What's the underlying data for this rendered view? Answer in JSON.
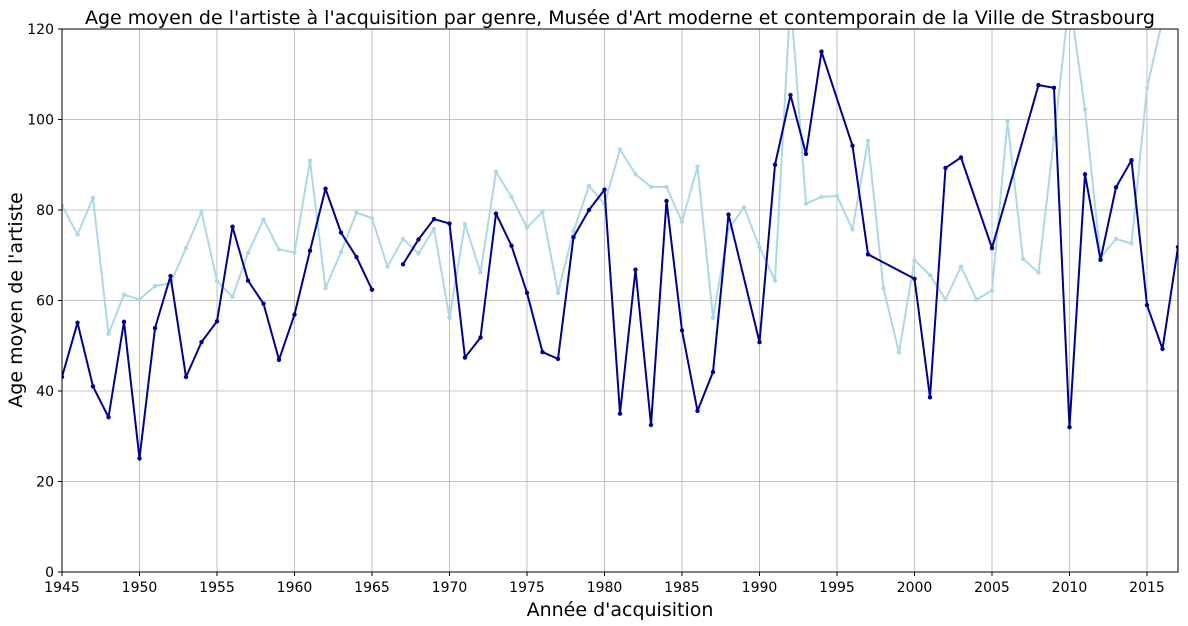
{
  "chart_data": {
    "type": "line",
    "title": "Age moyen de l'artiste à l'acquisition par genre, Musée d'Art moderne et contemporain de la Ville de Strasbourg",
    "xlabel": "Année d'acquisition",
    "ylabel": "Age moyen de l'artiste",
    "xlim": [
      1945,
      2017
    ],
    "ylim": [
      0,
      120
    ],
    "xticks": [
      1945,
      1950,
      1955,
      1960,
      1965,
      1970,
      1975,
      1980,
      1985,
      1990,
      1995,
      2000,
      2005,
      2010,
      2015
    ],
    "yticks": [
      0,
      20,
      40,
      60,
      80,
      100,
      120
    ],
    "grid": true,
    "series": [
      {
        "color": "#add8e6",
        "points": [
          [
            1945,
            81
          ],
          [
            1946,
            74.6
          ],
          [
            1947,
            82.7
          ],
          [
            1948,
            52.6
          ],
          [
            1949,
            61.3
          ],
          [
            1950,
            60.2
          ],
          [
            1951,
            63.2
          ],
          [
            1952,
            63.8
          ],
          [
            1953,
            71.6
          ],
          [
            1954,
            79.6
          ],
          [
            1955,
            64.3
          ],
          [
            1956,
            60.8
          ],
          [
            1957,
            70.5
          ],
          [
            1958,
            77.9
          ],
          [
            1959,
            71.3
          ],
          [
            1960,
            70.6
          ],
          [
            1961,
            90.9
          ],
          [
            1962,
            62.7
          ],
          [
            1963,
            70.7
          ],
          [
            1964,
            79.4
          ],
          [
            1965,
            78.2
          ],
          [
            1966,
            67.5
          ],
          [
            1967,
            73.6
          ],
          [
            1968,
            70.4
          ],
          [
            1969,
            75.8
          ],
          [
            1970,
            56.2
          ],
          [
            1971,
            76.9
          ],
          [
            1972,
            66.2
          ],
          [
            1973,
            88.4
          ],
          [
            1974,
            82.9
          ],
          [
            1975,
            76.1
          ],
          [
            1976,
            79.6
          ],
          [
            1977,
            61.7
          ],
          [
            1978,
            75.3
          ],
          [
            1979,
            85.3
          ],
          [
            1980,
            81.3
          ],
          [
            1981,
            93.4
          ],
          [
            1982,
            87.9
          ],
          [
            1983,
            85.1
          ],
          [
            1984,
            85.1
          ],
          [
            1985,
            77.4
          ],
          [
            1986,
            89.6
          ],
          [
            1987,
            56.2
          ],
          [
            1988,
            75.7
          ],
          [
            1989,
            80.6
          ],
          [
            1990,
            71.8
          ],
          [
            1991,
            64.4
          ],
          [
            1992,
            127
          ],
          [
            1993,
            81.4
          ],
          [
            1994,
            82.9
          ],
          [
            1995,
            83.1
          ],
          [
            1996,
            75.7
          ],
          [
            1997,
            95.3
          ],
          [
            1998,
            62.7
          ],
          [
            1999,
            48.5
          ],
          [
            2000,
            68.9
          ],
          [
            2001,
            65.6
          ],
          [
            2002,
            60.2
          ],
          [
            2003,
            67.5
          ],
          [
            2004,
            60.2
          ],
          [
            2005,
            62.2
          ],
          [
            2006,
            99.6
          ],
          [
            2007,
            69.2
          ],
          [
            2008,
            66.2
          ],
          [
            2009,
            95.8
          ],
          [
            2010,
            127
          ],
          [
            2011,
            102.2
          ],
          [
            2012,
            69.5
          ],
          [
            2013,
            73.6
          ],
          [
            2014,
            72.6
          ],
          [
            2015,
            107
          ],
          [
            2016,
            122
          ]
        ]
      },
      {
        "color": "#00008b",
        "points": [
          [
            1945,
            43.1
          ],
          [
            1946,
            55.1
          ],
          [
            1947,
            41
          ],
          [
            1948,
            34.2
          ],
          [
            1949,
            55.3
          ],
          [
            1950,
            25.1
          ],
          [
            1951,
            53.9
          ],
          [
            1952,
            65.4
          ],
          [
            1953,
            43.1
          ],
          [
            1954,
            50.8
          ],
          [
            1955,
            55.4
          ],
          [
            1956,
            76.3
          ],
          [
            1957,
            64.4
          ],
          [
            1958,
            59.3
          ],
          [
            1959,
            46.9
          ],
          [
            1960,
            56.9
          ],
          [
            1961,
            71
          ],
          [
            1962,
            84.7
          ],
          [
            1963,
            75
          ],
          [
            1964,
            69.6
          ],
          [
            1965,
            62.4
          ],
          null,
          [
            1967,
            68
          ],
          [
            1968,
            73.5
          ],
          [
            1969,
            78
          ],
          [
            1970,
            77
          ],
          [
            1971,
            47.4
          ],
          [
            1972,
            51.8
          ],
          [
            1973,
            79.2
          ],
          [
            1974,
            72.1
          ],
          [
            1975,
            61.7
          ],
          [
            1976,
            48.6
          ],
          [
            1977,
            47.1
          ],
          [
            1978,
            74
          ],
          [
            1979,
            80
          ],
          [
            1980,
            84.5
          ],
          [
            1981,
            35
          ],
          [
            1982,
            66.8
          ],
          [
            1983,
            32.5
          ],
          [
            1984,
            82
          ],
          [
            1985,
            53.4
          ],
          [
            1986,
            35.6
          ],
          [
            1987,
            44.2
          ],
          [
            1988,
            79
          ],
          [
            1990,
            50.8
          ],
          [
            1991,
            90
          ],
          [
            1992,
            105.4
          ],
          [
            1993,
            92.4
          ],
          [
            1994,
            115
          ],
          [
            1996,
            94.2
          ],
          [
            1997,
            70.2
          ],
          [
            2000,
            64.8
          ],
          [
            2001,
            38.6
          ],
          [
            2002,
            89.3
          ],
          [
            2003,
            91.6
          ],
          [
            2005,
            71.6
          ],
          [
            2008,
            107.6
          ],
          [
            2009,
            107
          ],
          [
            2010,
            32
          ],
          [
            2011,
            87.9
          ],
          [
            2012,
            69
          ],
          [
            2013,
            85
          ],
          [
            2014,
            91
          ],
          [
            2015,
            59
          ],
          [
            2016,
            49.3
          ],
          [
            2017,
            71.8
          ]
        ]
      }
    ]
  }
}
